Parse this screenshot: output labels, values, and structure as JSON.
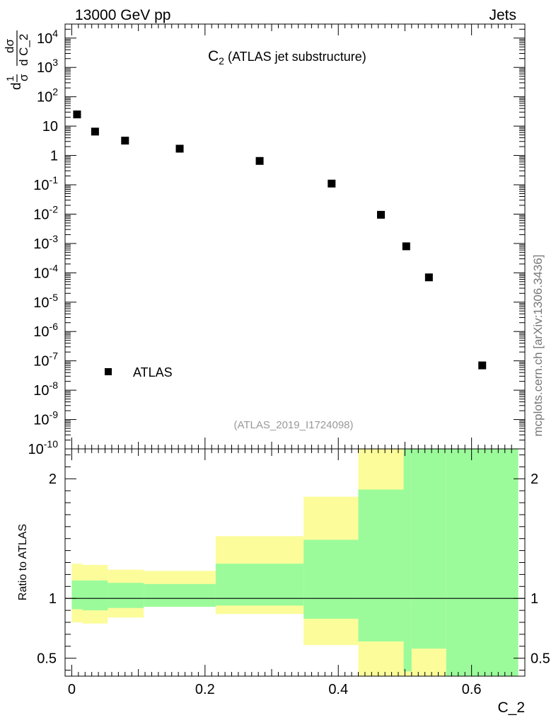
{
  "header": {
    "left": "13000 GeV pp",
    "right": "Jets"
  },
  "watermark": "mcplots.cern.ch [arXiv:1306.3436]",
  "chart_data": [
    {
      "type": "scatter",
      "panel": "main",
      "title_main": "C",
      "title_sub": "2",
      "title_rest": "(ATLAS jet substructure)",
      "ylabel": {
        "outer_num": "d",
        "outer_den": "σ",
        "inner_num": "dσ",
        "inner_den": "d C_2",
        "one": "1"
      },
      "reference": "(ATLAS_2019_I1724098)",
      "legend": {
        "label": "ATLAS",
        "placement": "lower-left"
      },
      "yscale": "log",
      "ylim": [
        1e-10,
        30000
      ],
      "xlim": [
        -0.01,
        0.68
      ],
      "y_ticks": [
        {
          "value": 1e-10,
          "base": "10",
          "exp": "-10"
        },
        {
          "value": 1e-09,
          "base": "10",
          "exp": "-9"
        },
        {
          "value": 1e-08,
          "base": "10",
          "exp": "-8"
        },
        {
          "value": 1e-07,
          "base": "10",
          "exp": "-7"
        },
        {
          "value": 1e-06,
          "base": "10",
          "exp": "-6"
        },
        {
          "value": 1e-05,
          "base": "10",
          "exp": "-5"
        },
        {
          "value": 0.0001,
          "base": "10",
          "exp": "-4"
        },
        {
          "value": 0.001,
          "base": "10",
          "exp": "-3"
        },
        {
          "value": 0.01,
          "base": "10",
          "exp": "-2"
        },
        {
          "value": 0.1,
          "base": "10",
          "exp": "-1"
        },
        {
          "value": 1,
          "base": "1",
          "exp": ""
        },
        {
          "value": 10,
          "base": "10",
          "exp": ""
        },
        {
          "value": 100,
          "base": "10",
          "exp": "2"
        },
        {
          "value": 1000,
          "base": "10",
          "exp": "3"
        },
        {
          "value": 10000,
          "base": "10",
          "exp": "4"
        }
      ],
      "series": [
        {
          "name": "ATLAS",
          "points": [
            {
              "x": 0.008,
              "y": 25
            },
            {
              "x": 0.035,
              "y": 6.5
            },
            {
              "x": 0.08,
              "y": 3.2
            },
            {
              "x": 0.162,
              "y": 1.7
            },
            {
              "x": 0.282,
              "y": 0.65
            },
            {
              "x": 0.39,
              "y": 0.11
            },
            {
              "x": 0.464,
              "y": 0.0095
            },
            {
              "x": 0.502,
              "y": 0.0008
            },
            {
              "x": 0.536,
              "y": 7e-05
            },
            {
              "x": 0.616,
              "y": 7e-08
            }
          ]
        }
      ]
    },
    {
      "type": "area",
      "panel": "ratio",
      "ylabel": "Ratio to ATLAS",
      "xlabel": "C_2",
      "xlim": [
        -0.01,
        0.68
      ],
      "ylim": [
        0.35,
        2.25
      ],
      "x_ticks": [
        {
          "value": 0,
          "label": "0"
        },
        {
          "value": 0.2,
          "label": "0.2"
        },
        {
          "value": 0.4,
          "label": "0.4"
        },
        {
          "value": 0.6,
          "label": "0.6"
        }
      ],
      "y_ticks": [
        {
          "value": 0.5,
          "label": "0.5"
        },
        {
          "value": 1,
          "label": "1"
        },
        {
          "value": 2,
          "label": "2"
        }
      ],
      "reference_line": 1,
      "colors": {
        "inner_band": "#9bfb9b",
        "outer_band": "#fcfc9a"
      },
      "bins": [
        {
          "x0": 0.0,
          "x1": 0.016,
          "y_lo": 0.8,
          "y_hi": 1.29,
          "g_lo": 0.91,
          "g_hi": 1.15
        },
        {
          "x0": 0.016,
          "x1": 0.054,
          "y_lo": 0.79,
          "y_hi": 1.28,
          "g_lo": 0.9,
          "g_hi": 1.15
        },
        {
          "x0": 0.054,
          "x1": 0.108,
          "y_lo": 0.84,
          "y_hi": 1.24,
          "g_lo": 0.92,
          "g_hi": 1.13
        },
        {
          "x0": 0.108,
          "x1": 0.216,
          "y_lo": 0.93,
          "y_hi": 1.23,
          "g_lo": 0.93,
          "g_hi": 1.12
        },
        {
          "x0": 0.216,
          "x1": 0.348,
          "y_lo": 0.87,
          "y_hi": 1.52,
          "g_lo": 0.94,
          "g_hi": 1.29
        },
        {
          "x0": 0.348,
          "x1": 0.43,
          "y_lo": 0.61,
          "y_hi": 1.85,
          "g_lo": 0.83,
          "g_hi": 1.49
        },
        {
          "x0": 0.43,
          "x1": 0.498,
          "y_lo": 0.35,
          "y_hi": 2.25,
          "g_lo": 0.64,
          "g_hi": 1.91
        },
        {
          "x0": 0.498,
          "x1": 0.51,
          "y_lo": 0.35,
          "y_hi": 2.25,
          "g_lo": 0.39,
          "g_hi": 2.25
        },
        {
          "x0": 0.51,
          "x1": 0.562,
          "y_lo": 0.35,
          "y_hi": 2.25,
          "g_lo": 0.58,
          "g_hi": 2.25
        },
        {
          "x0": 0.562,
          "x1": 0.67,
          "y_lo": 0.35,
          "y_hi": 2.25,
          "g_lo": 0.35,
          "g_hi": 2.25
        }
      ]
    }
  ]
}
